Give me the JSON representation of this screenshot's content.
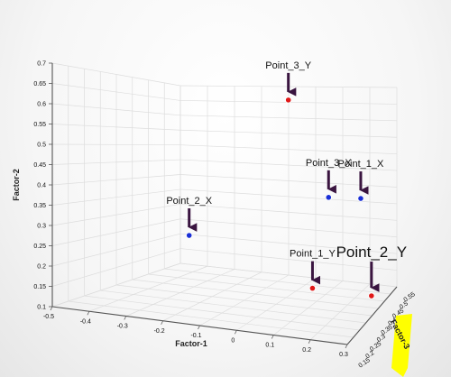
{
  "chart_data": {
    "type": "scatter",
    "xlabel": "Factor-1",
    "ylabel": "Factor-2",
    "zlabel": "Factor-3",
    "xlim": [
      -0.5,
      0.3
    ],
    "ylim": [
      0.1,
      0.7
    ],
    "x_ticks": [
      "-0.5",
      "-0.4",
      "-0.3",
      "-0.2",
      "-0.1",
      "0",
      "0.1",
      "0.2",
      "0.3"
    ],
    "y_ticks": [
      "0.1",
      "0.15",
      "0.2",
      "0.25",
      "0.3",
      "0.35",
      "0.4",
      "0.45",
      "0.5",
      "0.55",
      "0.6",
      "0.65",
      "0.7"
    ],
    "z_ticks": [
      "0.15",
      "0.2",
      "0.25",
      "0.3",
      "0.35",
      "0.4",
      "0.45",
      "0.5",
      "0.55"
    ],
    "grid": true,
    "points": [
      {
        "label": "Point_3_Y",
        "factor1": -0.04,
        "factor2": 0.71,
        "color": "#e01818"
      },
      {
        "label": "Point_3_X",
        "factor1": 0.11,
        "factor2": 0.42,
        "color": "#1a2fd6"
      },
      {
        "label": "Point_1_X",
        "factor1": 0.23,
        "factor2": 0.43,
        "color": "#1a2fd6"
      },
      {
        "label": "Point_2_X",
        "factor1": -0.41,
        "factor2": 0.23,
        "color": "#1a2fd6"
      },
      {
        "label": "Point_1_Y",
        "factor1": 0.05,
        "factor2": 0.13,
        "color": "#e01818"
      },
      {
        "label": "Point_2_Y",
        "factor1": 0.27,
        "factor2": 0.14,
        "color": "#e01818"
      }
    ]
  },
  "colors": {
    "arrow": "#3a1540",
    "highlight": "#ffff00"
  }
}
